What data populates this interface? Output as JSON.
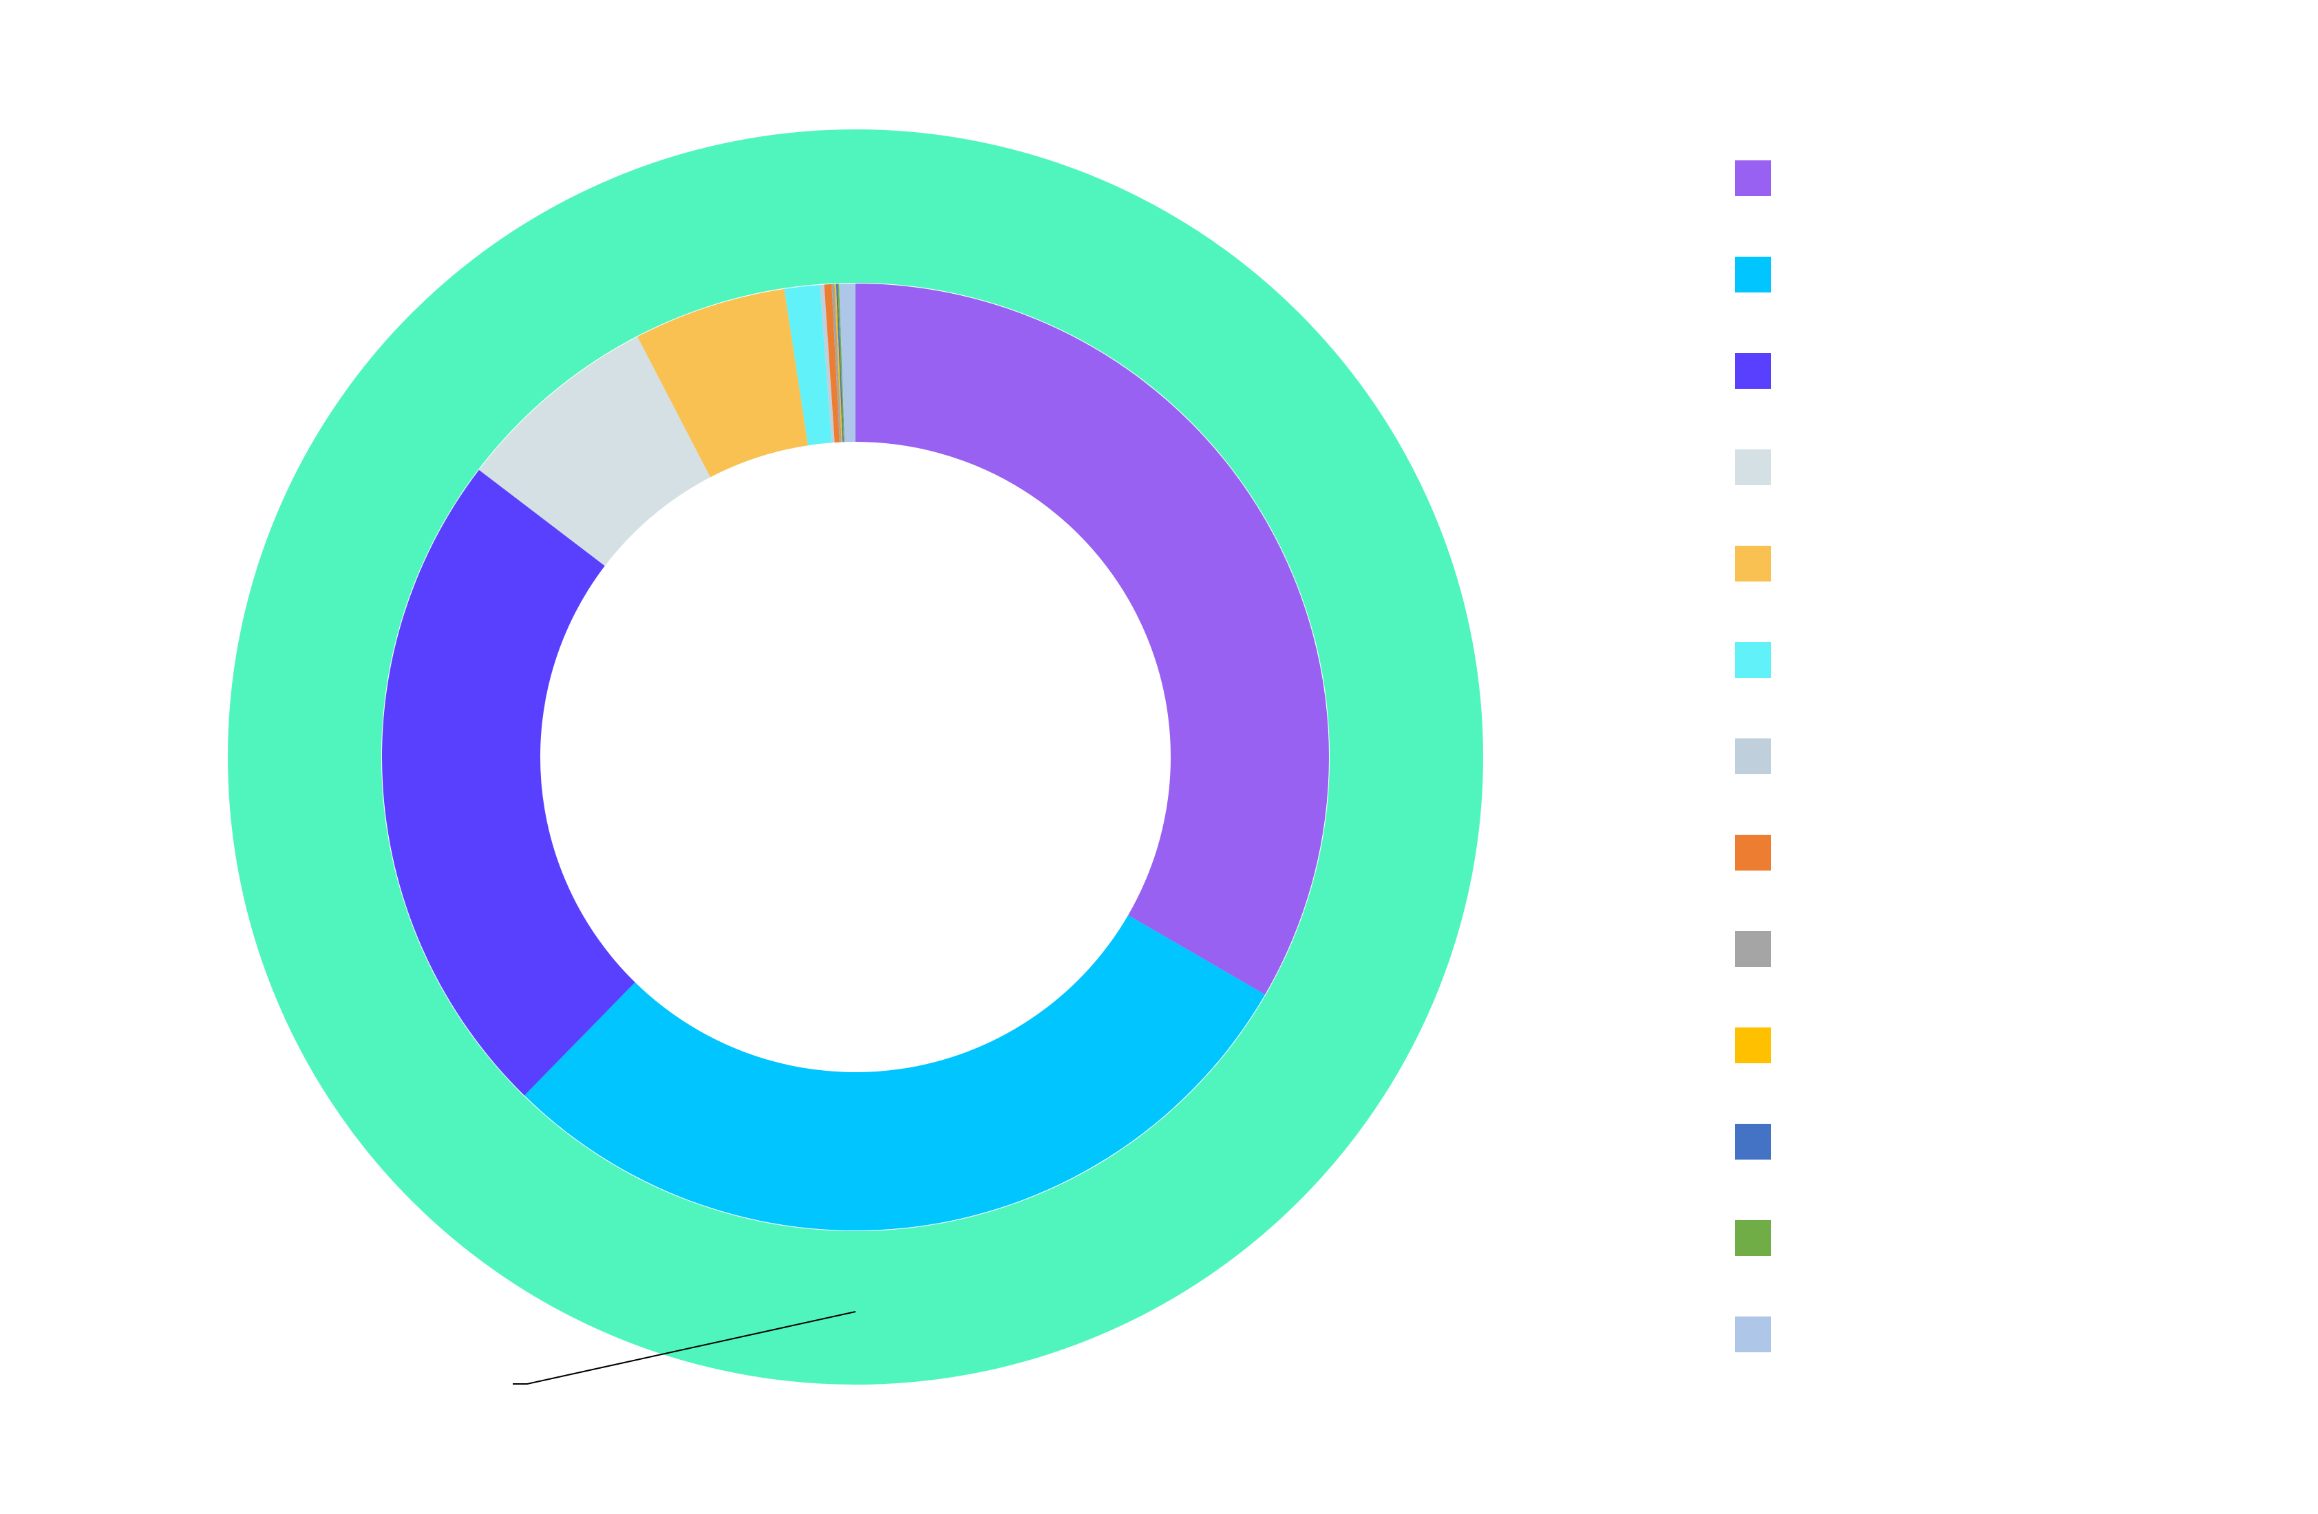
{
  "chart_data": {
    "type": "pie",
    "variant": "nested-donut",
    "title": "",
    "outer_ring": {
      "slices": [
        {
          "label": "",
          "value": 100,
          "color": "#50F5BE"
        }
      ],
      "callout_label": ""
    },
    "inner_ring": {
      "slices": [
        {
          "label": "",
          "value": 33.3,
          "color": "#9861F1"
        },
        {
          "label": "",
          "value": 28.9,
          "color": "#00C5FF"
        },
        {
          "label": "",
          "value": 23.0,
          "color": "#5940FF"
        },
        {
          "label": "",
          "value": 7.0,
          "color": "#D4E0E4"
        },
        {
          "label": "",
          "value": 5.2,
          "color": "#F8C151"
        },
        {
          "label": "",
          "value": 1.2,
          "color": "#60F1F9"
        },
        {
          "label": "",
          "value": 0.15,
          "color": "#BFD0DC"
        },
        {
          "label": "",
          "value": 0.25,
          "color": "#ED7D31"
        },
        {
          "label": "",
          "value": 0.1,
          "color": "#A5A5A5"
        },
        {
          "label": "",
          "value": 0.05,
          "color": "#FFC000"
        },
        {
          "label": "",
          "value": 0.05,
          "color": "#4472C4"
        },
        {
          "label": "",
          "value": 0.05,
          "color": "#70AD47"
        },
        {
          "label": "",
          "value": 0.55,
          "color": "#AEC7E8"
        }
      ]
    },
    "legend": {
      "placement": "right",
      "entries": [
        {
          "label": "",
          "color": "#9861F1"
        },
        {
          "label": "",
          "color": "#00C5FF"
        },
        {
          "label": "",
          "color": "#5940FF"
        },
        {
          "label": "",
          "color": "#D4E0E4"
        },
        {
          "label": "",
          "color": "#F8C151"
        },
        {
          "label": "",
          "color": "#60F1F9"
        },
        {
          "label": "",
          "color": "#BFD0DC"
        },
        {
          "label": "",
          "color": "#ED7D31"
        },
        {
          "label": "",
          "color": "#A5A5A5"
        },
        {
          "label": "",
          "color": "#FFC000"
        },
        {
          "label": "",
          "color": "#4472C4"
        },
        {
          "label": "",
          "color": "#70AD47"
        },
        {
          "label": "",
          "color": "#AEC7E8"
        }
      ]
    }
  }
}
